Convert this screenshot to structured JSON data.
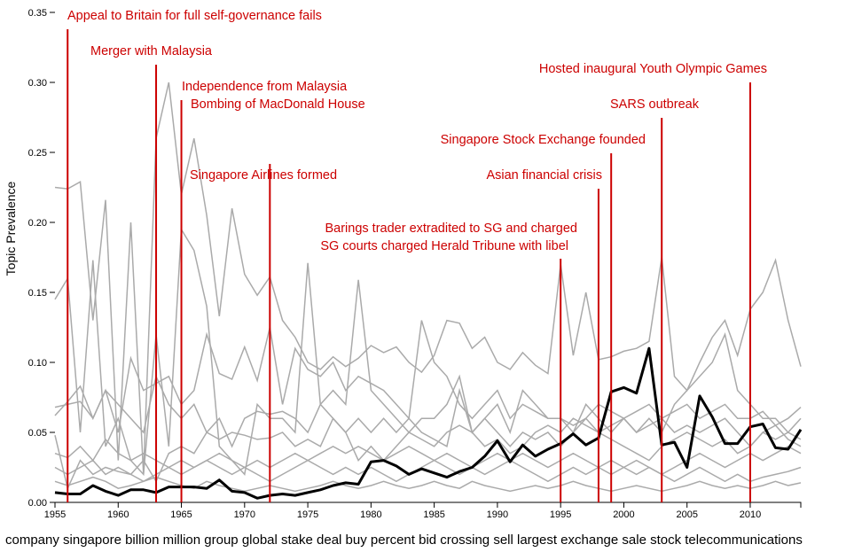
{
  "chart_data": {
    "type": "line",
    "ylabel": "Topic Prevalence",
    "xlabel": "",
    "xlim": [
      1955,
      2014
    ],
    "ylim": [
      0,
      0.35
    ],
    "xticks": [
      "1955",
      "1960",
      "1965",
      "1970",
      "1975",
      "1980",
      "1985",
      "1990",
      "1995",
      "2000",
      "2005",
      "2010"
    ],
    "yticks": [
      "0.00",
      "0.05",
      "0.10",
      "0.15",
      "0.20",
      "0.25",
      "0.30",
      "0.35"
    ],
    "caption": "company singapore billion million group global stake deal buy percent bid crossing sell largest exchange sale stock telecommunications",
    "highlight_color": "#000000",
    "background_color": "#aaaaaa",
    "event_color": "#cc0000",
    "highlight_series": {
      "name": "company singapore billion million group global stake deal buy percent bid crossing sell largest exchange sale stock telecommunications",
      "values": [
        0.007,
        0.006,
        0.006,
        0.012,
        0.008,
        0.005,
        0.009,
        0.009,
        0.007,
        0.011,
        0.011,
        0.011,
        0.01,
        0.016,
        0.008,
        0.007,
        0.003,
        0.005,
        0.006,
        0.005,
        0.007,
        0.009,
        0.012,
        0.014,
        0.013,
        0.029,
        0.03,
        0.026,
        0.02,
        0.024,
        0.021,
        0.018,
        0.022,
        0.025,
        0.033,
        0.044,
        0.029,
        0.041,
        0.033,
        0.038,
        0.042,
        0.049,
        0.041,
        0.046,
        0.079,
        0.082,
        0.078,
        0.11,
        0.041,
        0.043,
        0.025,
        0.076,
        0.061,
        0.042,
        0.042,
        0.054,
        0.056,
        0.039,
        0.038,
        0.052
      ]
    },
    "other_series": [
      {
        "values": [
          0.225,
          0.224,
          0.229,
          0.13,
          0.216,
          0.03,
          0.2,
          0.02,
          0.26,
          0.3,
          0.22,
          0.26,
          0.205,
          0.133,
          0.21,
          0.163,
          0.148,
          0.161,
          0.13,
          0.118,
          0.1,
          0.095,
          0.104,
          0.097,
          0.103,
          0.112,
          0.107,
          0.111,
          0.1,
          0.093,
          0.105,
          0.13,
          0.128,
          0.11,
          0.118,
          0.1,
          0.095,
          0.107,
          0.098,
          0.092,
          0.17,
          0.105,
          0.15,
          0.102,
          0.104,
          0.108,
          0.11,
          0.115,
          0.175,
          0.09,
          0.08,
          0.1,
          0.118,
          0.13,
          0.105,
          0.138,
          0.15,
          0.173,
          0.13,
          0.097
        ]
      },
      {
        "values": [
          0.145,
          0.16,
          0.05,
          0.173,
          0.04,
          0.06,
          0.03,
          0.02,
          0.12,
          0.04,
          0.195,
          0.18,
          0.14,
          0.04,
          0.03,
          0.02,
          0.07,
          0.06,
          0.06,
          0.05,
          0.171,
          0.07,
          0.08,
          0.07,
          0.159,
          0.08,
          0.07,
          0.06,
          0.05,
          0.06,
          0.06,
          0.07,
          0.09,
          0.05,
          0.06,
          0.07,
          0.05,
          0.08,
          0.07,
          0.06,
          0.06,
          0.05,
          0.07,
          0.06,
          0.05,
          0.06,
          0.05,
          0.06,
          0.05,
          0.07,
          0.08,
          0.09,
          0.1,
          0.12,
          0.08,
          0.07,
          0.06,
          0.06,
          0.05,
          0.06
        ]
      },
      {
        "values": [
          0.068,
          0.07,
          0.072,
          0.06,
          0.08,
          0.05,
          0.103,
          0.08,
          0.085,
          0.09,
          0.07,
          0.08,
          0.12,
          0.092,
          0.088,
          0.111,
          0.087,
          0.125,
          0.07,
          0.11,
          0.095,
          0.09,
          0.1,
          0.08,
          0.09,
          0.085,
          0.08,
          0.07,
          0.06,
          0.13,
          0.1,
          0.09,
          0.07,
          0.06,
          0.07,
          0.08,
          0.06,
          0.07,
          0.065,
          0.06,
          0.06,
          0.055,
          0.06,
          0.07,
          0.065,
          0.06,
          0.065,
          0.07,
          0.06,
          0.065,
          0.07,
          0.06,
          0.065,
          0.07,
          0.06,
          0.06,
          0.065,
          0.055,
          0.06,
          0.068
        ]
      },
      {
        "values": [
          0.062,
          0.072,
          0.083,
          0.06,
          0.08,
          0.07,
          0.06,
          0.05,
          0.09,
          0.07,
          0.06,
          0.07,
          0.05,
          0.06,
          0.04,
          0.06,
          0.065,
          0.063,
          0.065,
          0.06,
          0.05,
          0.07,
          0.06,
          0.05,
          0.06,
          0.05,
          0.06,
          0.05,
          0.06,
          0.05,
          0.045,
          0.04,
          0.08,
          0.05,
          0.06,
          0.05,
          0.04,
          0.05,
          0.045,
          0.05,
          0.04,
          0.05,
          0.06,
          0.05,
          0.055,
          0.06,
          0.05,
          0.055,
          0.06,
          0.05,
          0.055,
          0.05,
          0.055,
          0.06,
          0.05,
          0.04,
          0.05,
          0.055,
          0.045,
          0.04
        ]
      },
      {
        "values": [
          0.048,
          0.01,
          0.03,
          0.02,
          0.025,
          0.022,
          0.02,
          0.03,
          0.015,
          0.035,
          0.04,
          0.035,
          0.05,
          0.045,
          0.05,
          0.048,
          0.045,
          0.046,
          0.05,
          0.04,
          0.045,
          0.04,
          0.06,
          0.05,
          0.03,
          0.04,
          0.03,
          0.04,
          0.05,
          0.045,
          0.04,
          0.05,
          0.055,
          0.05,
          0.04,
          0.045,
          0.035,
          0.04,
          0.05,
          0.055,
          0.05,
          0.06,
          0.055,
          0.05,
          0.045,
          0.04,
          0.035,
          0.03,
          0.04,
          0.045,
          0.05,
          0.045,
          0.04,
          0.045,
          0.035,
          0.04,
          0.05,
          0.045,
          0.05,
          0.045
        ]
      },
      {
        "values": [
          0.035,
          0.032,
          0.04,
          0.03,
          0.045,
          0.035,
          0.03,
          0.035,
          0.03,
          0.025,
          0.03,
          0.025,
          0.03,
          0.035,
          0.03,
          0.025,
          0.03,
          0.025,
          0.03,
          0.035,
          0.03,
          0.035,
          0.04,
          0.035,
          0.04,
          0.035,
          0.03,
          0.035,
          0.04,
          0.035,
          0.03,
          0.035,
          0.03,
          0.025,
          0.03,
          0.035,
          0.03,
          0.035,
          0.03,
          0.025,
          0.03,
          0.035,
          0.03,
          0.025,
          0.02,
          0.025,
          0.03,
          0.025,
          0.02,
          0.025,
          0.03,
          0.035,
          0.03,
          0.025,
          0.03,
          0.035,
          0.03,
          0.035,
          0.04,
          0.035
        ]
      },
      {
        "values": [
          0.025,
          0.02,
          0.025,
          0.03,
          0.02,
          0.025,
          0.02,
          0.015,
          0.02,
          0.025,
          0.02,
          0.025,
          0.03,
          0.025,
          0.02,
          0.025,
          0.02,
          0.015,
          0.02,
          0.025,
          0.03,
          0.025,
          0.02,
          0.025,
          0.02,
          0.025,
          0.02,
          0.015,
          0.02,
          0.025,
          0.03,
          0.025,
          0.02,
          0.025,
          0.02,
          0.025,
          0.03,
          0.025,
          0.02,
          0.015,
          0.02,
          0.025,
          0.02,
          0.025,
          0.03,
          0.025,
          0.02,
          0.025,
          0.02,
          0.015,
          0.02,
          0.025,
          0.02,
          0.015,
          0.02,
          0.015,
          0.018,
          0.02,
          0.022,
          0.025
        ]
      },
      {
        "values": [
          0.015,
          0.012,
          0.015,
          0.018,
          0.015,
          0.01,
          0.012,
          0.015,
          0.018,
          0.015,
          0.012,
          0.01,
          0.015,
          0.012,
          0.01,
          0.008,
          0.01,
          0.012,
          0.01,
          0.008,
          0.01,
          0.012,
          0.015,
          0.012,
          0.01,
          0.012,
          0.015,
          0.012,
          0.01,
          0.012,
          0.015,
          0.012,
          0.01,
          0.015,
          0.012,
          0.01,
          0.008,
          0.01,
          0.012,
          0.01,
          0.012,
          0.015,
          0.012,
          0.01,
          0.008,
          0.01,
          0.012,
          0.01,
          0.008,
          0.01,
          0.012,
          0.015,
          0.012,
          0.01,
          0.012,
          0.01,
          0.012,
          0.015,
          0.012,
          0.014
        ]
      }
    ],
    "events": [
      {
        "year": 1956,
        "labels": [
          "Appeal to Britain for full self-governance fails"
        ]
      },
      {
        "year": 1963,
        "labels": [
          "Merger with Malaysia"
        ]
      },
      {
        "year": 1965,
        "labels": [
          "Independence from Malaysia",
          "Bombing of MacDonald House"
        ]
      },
      {
        "year": 1972,
        "labels": [
          "Singapore Airlines formed"
        ]
      },
      {
        "year": 1995,
        "labels": [
          "Barings trader extradited to SG and charged",
          "SG courts charged Herald Tribune with libel"
        ]
      },
      {
        "year": 1998,
        "labels": [
          "Asian financial crisis"
        ]
      },
      {
        "year": 1999,
        "labels": [
          "Singapore Stock Exchange founded"
        ]
      },
      {
        "year": 2003,
        "labels": [
          "SARS outbreak"
        ]
      },
      {
        "year": 2010,
        "labels": [
          "Hosted inaugural Youth Olympic Games"
        ]
      }
    ]
  }
}
